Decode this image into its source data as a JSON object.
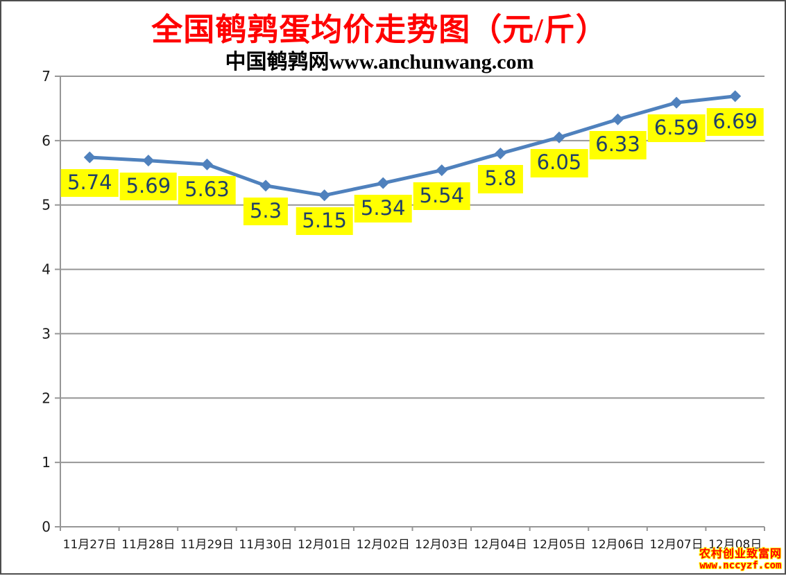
{
  "header": {
    "title": "全国鹌鹑蛋均价走势图（元/斤）",
    "title_color": "#FF0000",
    "subtitle": "中国鹌鹑网www.anchunwang.com",
    "subtitle_color": "#000000"
  },
  "chart_data": {
    "type": "line",
    "title": "全国鹌鹑蛋均价走势图（元/斤）",
    "subtitle": "中国鹌鹑网www.anchunwang.com",
    "categories": [
      "11月27日",
      "11月28日",
      "11月29日",
      "11月30日",
      "12月01日",
      "12月02日",
      "12月03日",
      "12月04日",
      "12月05日",
      "12月06日",
      "12月07日",
      "12月08日"
    ],
    "values": [
      5.74,
      5.69,
      5.63,
      5.3,
      5.15,
      5.34,
      5.54,
      5.8,
      6.05,
      6.33,
      6.59,
      6.69
    ],
    "xlabel": "",
    "ylabel": "",
    "ylim": [
      0,
      7
    ],
    "yticks": [
      0,
      1,
      2,
      3,
      4,
      5,
      6,
      7
    ],
    "grid": true,
    "legend": "none",
    "line_color": "#4F81BD",
    "marker": "diamond",
    "marker_color": "#4F81BD",
    "data_label_bg": "#FFFF00",
    "data_label_color": "#1F4068",
    "gridline_color": "#969696",
    "axis_text_color": "#1a1a1a"
  },
  "watermark": {
    "line1": "农村创业致富网",
    "line2": "www.nccyzf.com",
    "text_color": "#FF0000",
    "outline_color": "#FFFF00"
  }
}
